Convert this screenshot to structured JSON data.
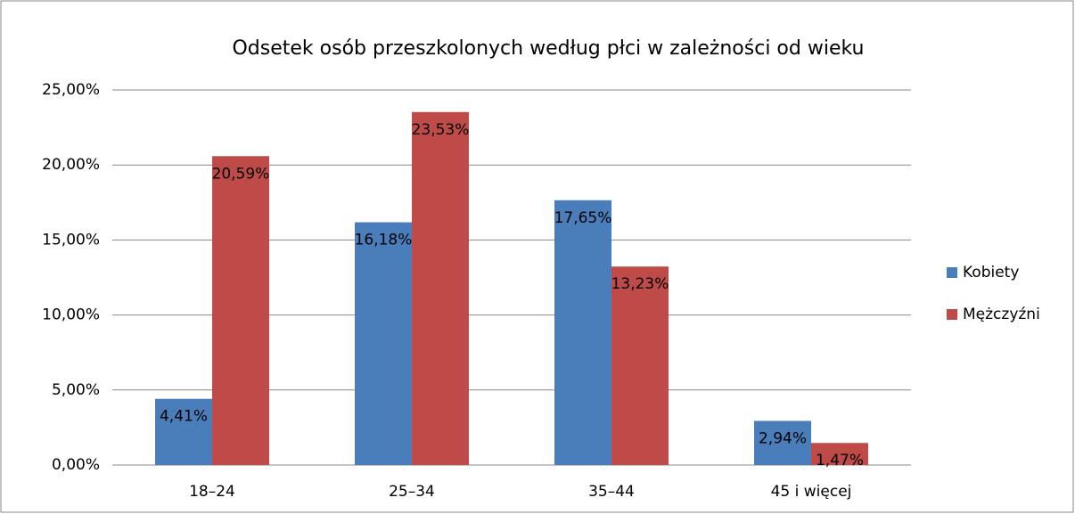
{
  "chart_data": {
    "type": "bar",
    "title": "Odsetek osób przeszkolonych według płci w zależności od wieku",
    "categories": [
      "18–24",
      "25–34",
      "35–44",
      "45 i więcej"
    ],
    "series": [
      {
        "name": "Kobiety",
        "color": "#4a7ebb",
        "values": [
          4.41,
          16.18,
          17.65,
          2.94
        ],
        "value_labels": [
          "4,41%",
          "16,18%",
          "17,65%",
          "2,94%"
        ]
      },
      {
        "name": "Mężczyźni",
        "color": "#be4b48",
        "values": [
          20.59,
          23.53,
          13.23,
          1.47
        ],
        "value_labels": [
          "20,59%",
          "23,53%",
          "13,23%",
          "1,47%"
        ]
      }
    ],
    "ylim": [
      0,
      25
    ],
    "yticks": [
      {
        "value": 0,
        "label": "0,00%"
      },
      {
        "value": 5,
        "label": "5,00%"
      },
      {
        "value": 10,
        "label": "10,00%"
      },
      {
        "value": 15,
        "label": "15,00%"
      },
      {
        "value": 20,
        "label": "20,00%"
      },
      {
        "value": 25,
        "label": "25,00%"
      }
    ],
    "grid": true,
    "legend": "right"
  }
}
